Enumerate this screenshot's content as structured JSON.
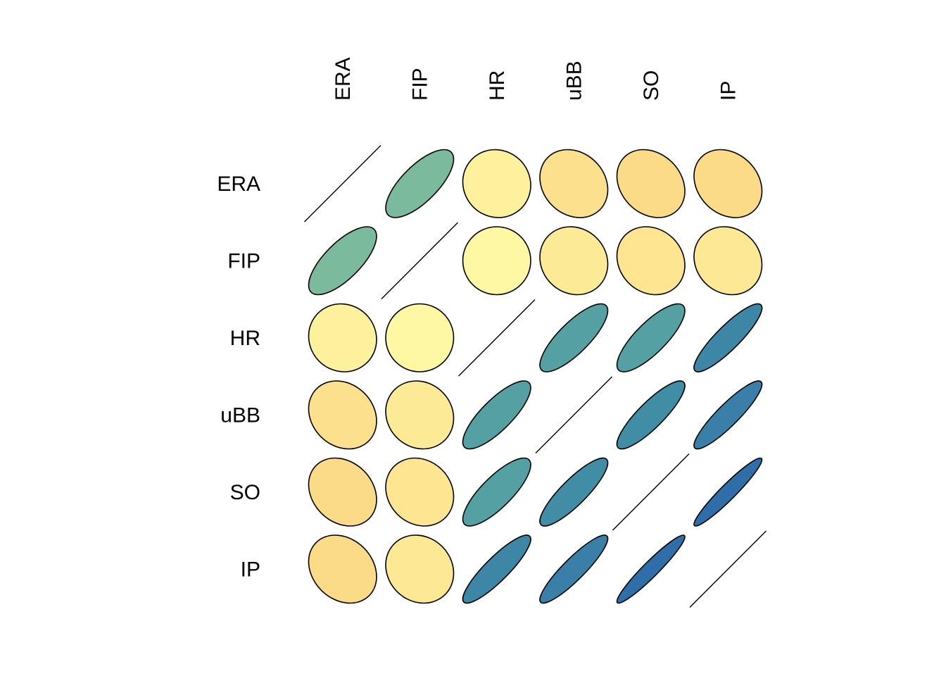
{
  "chart_data": {
    "type": "heatmap",
    "subtype": "correlation-ellipse-matrix",
    "variables": [
      "ERA",
      "FIP",
      "HR",
      "uBB",
      "SO",
      "IP"
    ],
    "matrix": [
      [
        1.0,
        0.72,
        -0.05,
        -0.18,
        -0.22,
        -0.22
      ],
      [
        0.72,
        1.0,
        0.0,
        -0.1,
        -0.14,
        -0.12
      ],
      [
        -0.05,
        0.0,
        1.0,
        0.8,
        0.8,
        0.88
      ],
      [
        -0.18,
        -0.1,
        0.8,
        1.0,
        0.86,
        0.9
      ],
      [
        -0.22,
        -0.14,
        0.8,
        0.86,
        1.0,
        0.95
      ],
      [
        -0.22,
        -0.12,
        0.88,
        0.9,
        0.95,
        1.0
      ]
    ],
    "diagonal": "line",
    "color_scale": {
      "min_color": "#F79947",
      "mid_color": "#FEF7A4",
      "max_color": "#2A64AA",
      "range": [
        -1,
        1
      ]
    },
    "legend": "none"
  }
}
